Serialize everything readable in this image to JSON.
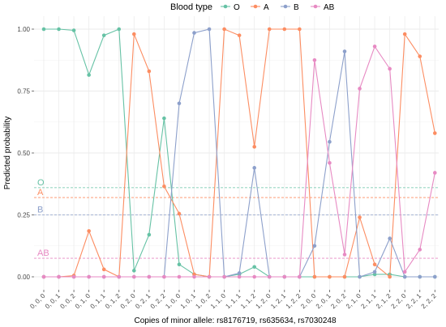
{
  "chart_data": {
    "type": "line",
    "title": "",
    "xlabel": "Copies of minor allele: rs8176719, rs635634, rs7030248",
    "ylabel": "Predicted probability",
    "ylim": [
      0,
      1
    ],
    "yticks": [
      0,
      0.25,
      0.5,
      0.75,
      1
    ],
    "ytick_labels": [
      "0.00",
      "0.25",
      "0.50",
      "0.75",
      "1.00"
    ],
    "grid": true,
    "legend": {
      "title": "Blood type",
      "position": "top"
    },
    "categories": [
      "0, 0, 0",
      "0, 0, 1",
      "0, 0, 2",
      "0, 1, 0",
      "0, 1, 1",
      "0, 1, 2",
      "0, 2, 0",
      "0, 2, 1",
      "0, 2, 2",
      "1, 0, 0",
      "1, 0, 1",
      "1, 0, 2",
      "1, 1, 0",
      "1, 1, 1",
      "1, 1, 2",
      "1, 2, 0",
      "1, 2, 1",
      "1, 2, 2",
      "2, 0, 0",
      "2, 0, 1",
      "2, 0, 2",
      "2, 1, 0",
      "2, 1, 1",
      "2, 1, 2",
      "2, 2, 0",
      "2, 2, 1",
      "2, 2, 2"
    ],
    "series": [
      {
        "name": "O",
        "color": "#66c2a5",
        "values": [
          1.0,
          1.0,
          0.995,
          0.815,
          0.975,
          1.0,
          0.025,
          0.17,
          0.64,
          0.05,
          0.01,
          0.0,
          0.0,
          0.01,
          0.04,
          0.0,
          0.0,
          0.0,
          0.0,
          0.0,
          0.0,
          0.0,
          0.01,
          0.01,
          0.0,
          0.0,
          0.0
        ]
      },
      {
        "name": "A",
        "color": "#fc8d62",
        "values": [
          0.0,
          0.0,
          0.005,
          0.185,
          0.03,
          0.0,
          0.98,
          0.83,
          0.365,
          0.255,
          0.01,
          0.0,
          1.0,
          0.975,
          0.525,
          1.0,
          1.0,
          1.0,
          0.0,
          0.0,
          0.0,
          0.24,
          0.05,
          0.0,
          0.98,
          0.89,
          0.58
        ]
      },
      {
        "name": "B",
        "color": "#8da0cb",
        "values": [
          0.0,
          0.0,
          0.0,
          0.0,
          0.0,
          0.0,
          0.0,
          0.0,
          0.0,
          0.7,
          0.985,
          1.0,
          0.0,
          0.015,
          0.44,
          0.0,
          0.0,
          0.0,
          0.125,
          0.545,
          0.91,
          0.0,
          0.02,
          0.155,
          0.0,
          0.0,
          0.0
        ]
      },
      {
        "name": "AB",
        "color": "#e78ac3",
        "values": [
          0.0,
          0.0,
          0.0,
          0.0,
          0.0,
          0.0,
          0.0,
          0.0,
          0.0,
          0.0,
          0.0,
          0.0,
          0.0,
          0.0,
          0.0,
          0.0,
          0.0,
          0.0,
          0.875,
          0.46,
          0.09,
          0.76,
          0.93,
          0.84,
          0.02,
          0.11,
          0.42
        ]
      }
    ],
    "reference_lines": [
      {
        "label": "O",
        "series": "O",
        "y": 0.36
      },
      {
        "label": "A",
        "series": "A",
        "y": 0.32
      },
      {
        "label": "B",
        "series": "B",
        "y": 0.25
      },
      {
        "label": "AB",
        "series": "AB",
        "y": 0.075
      }
    ]
  }
}
